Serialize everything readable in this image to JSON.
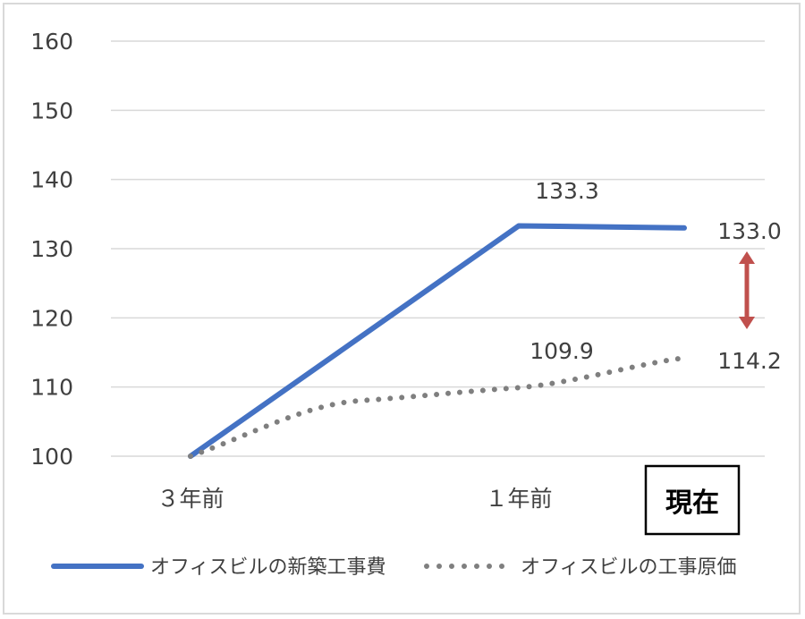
{
  "chart_data": {
    "type": "line",
    "categories": [
      "３年前",
      "",
      "１年前",
      "現在"
    ],
    "ylim": [
      100,
      160
    ],
    "yticks": [
      100,
      110,
      120,
      130,
      140,
      150,
      160
    ],
    "grid": true,
    "legend_position": "bottom",
    "series": [
      {
        "name": "オフィスビルの新築工事費",
        "values": [
          100,
          116.6,
          133.3,
          133.0
        ],
        "data_labels": [
          "",
          "",
          "133.3",
          "133.0"
        ],
        "color": "#4472c4",
        "style": "solid"
      },
      {
        "name": "オフィスビルの工事原価",
        "values": [
          100,
          108,
          109.9,
          114.2
        ],
        "data_labels": [
          "",
          "",
          "109.9",
          "114.2"
        ],
        "color": "#7f7f7f",
        "style": "dotted"
      }
    ],
    "annotation": {
      "type": "double-arrow",
      "between": [
        "133.0",
        "114.2"
      ],
      "color": "#c0504d"
    },
    "current_label": "現在"
  }
}
